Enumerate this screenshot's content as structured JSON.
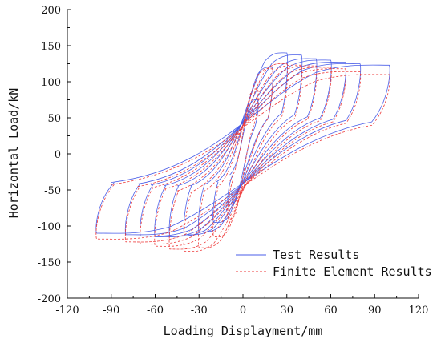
{
  "chart_data": {
    "type": "line",
    "title": "",
    "xlabel": "Loading Displayment/mm",
    "ylabel": "Horizontal Load/kN",
    "xlim": [
      -120,
      120
    ],
    "ylim": [
      -200,
      200
    ],
    "x_ticks": [
      "-120",
      "-90",
      "-60",
      "-30",
      "0",
      "30",
      "60",
      "90",
      "120"
    ],
    "y_ticks": [
      "200",
      "150",
      "100",
      "50",
      "0",
      "-50",
      "-100",
      "-150",
      "-200"
    ],
    "grid": false,
    "legend_position": "bottom-right",
    "series": [
      {
        "name": "Test Results",
        "color": "#4a5ee8",
        "style": "solid",
        "loops": [
          {
            "d_pos": 10,
            "p_pos": 75,
            "d_neg": -10,
            "p_neg": -70
          },
          {
            "d_pos": 20,
            "p_pos": 120,
            "d_neg": -20,
            "p_neg": -95
          },
          {
            "d_pos": 30,
            "p_pos": 140,
            "d_neg": -30,
            "p_neg": -108
          },
          {
            "d_pos": 40,
            "p_pos": 137,
            "d_neg": -40,
            "p_neg": -112
          },
          {
            "d_pos": 50,
            "p_pos": 132,
            "d_neg": -50,
            "p_neg": -114
          },
          {
            "d_pos": 60,
            "p_pos": 130,
            "d_neg": -60,
            "p_neg": -115
          },
          {
            "d_pos": 70,
            "p_pos": 127,
            "d_neg": -70,
            "p_neg": -114
          },
          {
            "d_pos": 80,
            "p_pos": 125,
            "d_neg": -80,
            "p_neg": -112
          },
          {
            "d_pos": 100,
            "p_pos": 123,
            "d_neg": -100,
            "p_neg": -110
          }
        ]
      },
      {
        "name": "Finite Element Results",
        "color": "#ee3b3b",
        "style": "dashed",
        "loops": [
          {
            "d_pos": 10,
            "p_pos": 90,
            "d_neg": -10,
            "p_neg": -90
          },
          {
            "d_pos": 20,
            "p_pos": 118,
            "d_neg": -20,
            "p_neg": -115
          },
          {
            "d_pos": 30,
            "p_pos": 125,
            "d_neg": -30,
            "p_neg": -130
          },
          {
            "d_pos": 40,
            "p_pos": 123,
            "d_neg": -40,
            "p_neg": -135
          },
          {
            "d_pos": 50,
            "p_pos": 122,
            "d_neg": -50,
            "p_neg": -132
          },
          {
            "d_pos": 60,
            "p_pos": 120,
            "d_neg": -60,
            "p_neg": -128
          },
          {
            "d_pos": 70,
            "p_pos": 118,
            "d_neg": -70,
            "p_neg": -125
          },
          {
            "d_pos": 80,
            "p_pos": 114,
            "d_neg": -80,
            "p_neg": -122
          },
          {
            "d_pos": 100,
            "p_pos": 110,
            "d_neg": -100,
            "p_neg": -118
          }
        ]
      }
    ]
  }
}
